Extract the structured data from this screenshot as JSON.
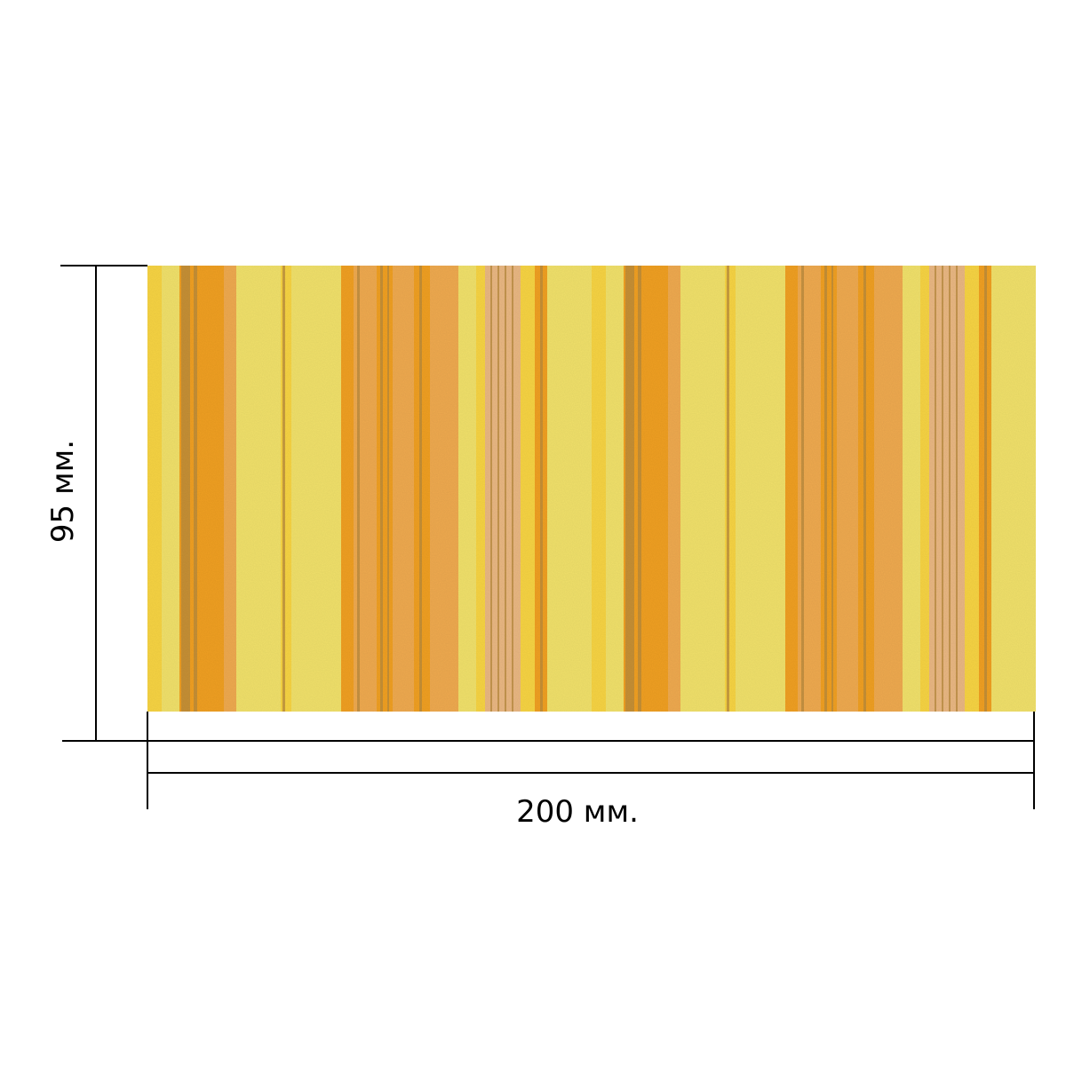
{
  "dimensions": {
    "height_label": "95 мм.",
    "width_label": "200 мм."
  },
  "sample": {
    "pattern": "vertical-stripes",
    "colors": {
      "light_yellow": "#f0e06a",
      "yellow": "#f6d343",
      "orange": "#ef9f22",
      "peach": "#eea94f",
      "tan": "#e9b782",
      "gold_foil": "#b78a3c"
    }
  },
  "line_color": "#000000"
}
